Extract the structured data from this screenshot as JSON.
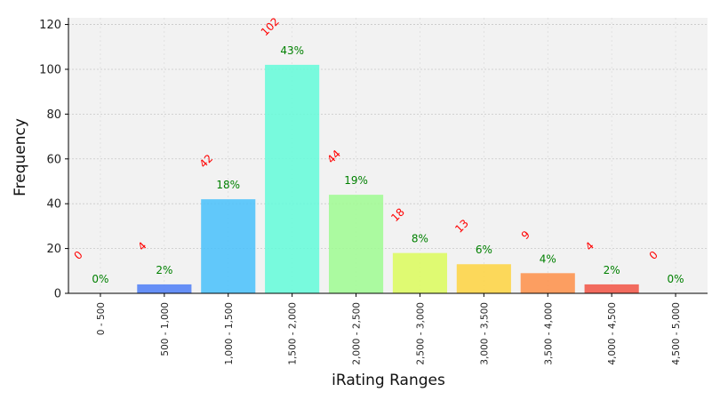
{
  "chart_data": {
    "type": "bar",
    "xlabel": "iRating Ranges",
    "ylabel": "Frequency",
    "ylim": [
      0,
      123
    ],
    "yticks": [
      0,
      20,
      40,
      60,
      80,
      100,
      120
    ],
    "grid": true,
    "categories": [
      "0 - 500",
      "500 - 1,000",
      "1,000 - 1,500",
      "1,500 - 2,000",
      "2,000 - 2,500",
      "2,500 - 3,000",
      "3,000 - 3,500",
      "3,500 - 4,000",
      "4,000 - 4,500",
      "4,500 - 5,000"
    ],
    "values": [
      0,
      4,
      42,
      102,
      44,
      18,
      13,
      9,
      4,
      0
    ],
    "count_labels": [
      "0",
      "4",
      "42",
      "102",
      "44",
      "18",
      "13",
      "9",
      "4",
      "0"
    ],
    "percent_labels": [
      "0%",
      "2%",
      "18%",
      "43%",
      "19%",
      "8%",
      "6%",
      "4%",
      "2%",
      "0%"
    ],
    "colors": [
      "#3a10e5",
      "#4d7ef7",
      "#48c1fb",
      "#63fcd9",
      "#9ffc92",
      "#dcfc5c",
      "#fed43f",
      "#fe8f48",
      "#f25444",
      "#b71a0a"
    ]
  }
}
